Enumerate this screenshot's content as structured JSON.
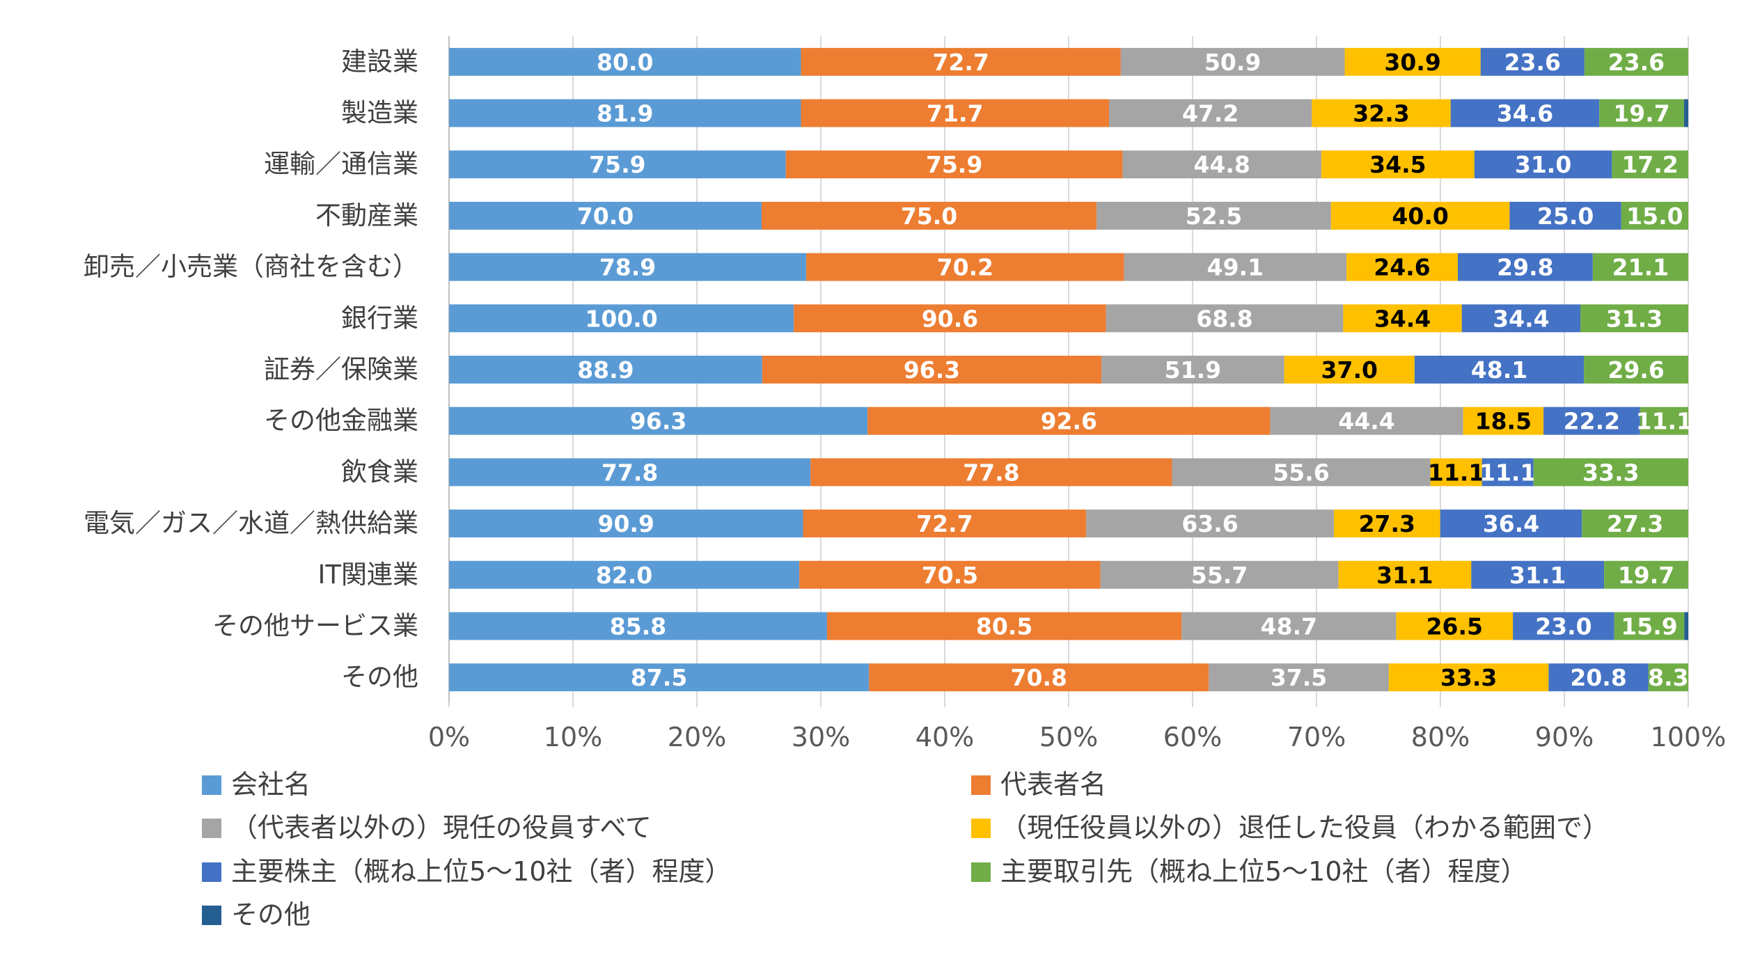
{
  "chart_data": {
    "type": "bar",
    "orientation": "horizontal",
    "stacked": true,
    "normalized": true,
    "categories": [
      "建設業",
      "製造業",
      "運輸／通信業",
      "不動産業",
      "卸売／小売業（商社を含む）",
      "銀行業",
      "証券／保険業",
      "その他金融業",
      "飲食業",
      "電気／ガス／水道／熱供給業",
      "IT関連業",
      "その他サービス業",
      "その他"
    ],
    "series": [
      {
        "name": "会社名",
        "color": "#5B9BD5",
        "label_color": "#FFFFFF",
        "values": [
          80.0,
          81.9,
          75.9,
          70.0,
          78.9,
          100.0,
          88.9,
          96.3,
          77.8,
          90.9,
          82.0,
          85.8,
          87.5
        ],
        "labels": [
          "80.0",
          "81.9",
          "75.9",
          "70.0",
          "78.9",
          "100.0",
          "88.9",
          "96.3",
          "77.8",
          "90.9",
          "82.0",
          "85.8",
          "87.5"
        ]
      },
      {
        "name": "代表者名",
        "color": "#ED7D31",
        "label_color": "#FFFFFF",
        "values": [
          72.7,
          71.7,
          75.9,
          75.0,
          70.2,
          90.6,
          96.3,
          92.6,
          77.8,
          72.7,
          70.5,
          80.5,
          70.8
        ],
        "labels": [
          "72.7",
          "71.7",
          "75.9",
          "75.0",
          "70.2",
          "90.6",
          "96.3",
          "92.6",
          "77.8",
          "72.7",
          "70.5",
          "80.5",
          "70.8"
        ]
      },
      {
        "name": "（代表者以外の）現任の役員すべて",
        "color": "#A5A5A5",
        "label_color": "#FFFFFF",
        "values": [
          50.9,
          47.2,
          44.8,
          52.5,
          49.1,
          68.8,
          51.9,
          44.4,
          55.6,
          63.6,
          55.7,
          48.7,
          37.5
        ],
        "labels": [
          "50.9",
          "47.2",
          "44.8",
          "52.5",
          "49.1",
          "68.8",
          "51.9",
          "44.4",
          "55.6",
          "63.6",
          "55.7",
          "48.7",
          "37.5"
        ]
      },
      {
        "name": "（現任役員以外の）退任した役員（わかる範囲で）",
        "color": "#FFC000",
        "label_color": "#000000",
        "values": [
          30.9,
          32.3,
          34.5,
          40.0,
          24.6,
          34.4,
          37.0,
          18.5,
          11.1,
          27.3,
          31.1,
          26.5,
          33.3
        ],
        "labels": [
          "30.9",
          "32.3",
          "34.5",
          "40.0",
          "24.6",
          "34.4",
          "37.0",
          "18.5",
          "11.1",
          "27.3",
          "31.1",
          "26.5",
          "33.3"
        ]
      },
      {
        "name": "主要株主（概ね上位5～10社（者）程度）",
        "color": "#4472C4",
        "label_color": "#FFFFFF",
        "values": [
          23.6,
          34.6,
          31.0,
          25.0,
          29.8,
          34.4,
          48.1,
          22.2,
          11.1,
          36.4,
          31.1,
          23.0,
          20.8
        ],
        "labels": [
          "23.6",
          "34.6",
          "31.0",
          "25.0",
          "29.8",
          "34.4",
          "48.1",
          "22.2",
          "11.1",
          "36.4",
          "31.1",
          "23.0",
          "20.8"
        ]
      },
      {
        "name": "主要取引先（概ね上位5～10社（者）程度）",
        "color": "#70AD47",
        "label_color": "#FFFFFF",
        "values": [
          23.6,
          19.7,
          17.2,
          15.0,
          21.1,
          31.3,
          29.6,
          11.1,
          33.3,
          27.3,
          19.7,
          15.9,
          8.3
        ],
        "labels": [
          "23.6",
          "19.7",
          "17.2",
          "15.0",
          "21.1",
          "31.3",
          "29.6",
          "11.1",
          "33.3",
          "27.3",
          "19.7",
          "15.9",
          "8.3"
        ]
      },
      {
        "name": "その他",
        "color": "#255E91",
        "label_color": "#FFFFFF",
        "values": [
          0,
          1.0,
          0,
          0,
          0,
          0,
          0,
          0,
          0,
          0,
          0,
          0.9,
          0
        ],
        "labels": [
          "",
          "",
          "",
          "",
          "",
          "",
          "",
          "",
          "",
          "",
          "",
          "",
          ""
        ]
      }
    ],
    "x_ticks": [
      "0%",
      "10%",
      "20%",
      "30%",
      "40%",
      "50%",
      "60%",
      "70%",
      "80%",
      "90%",
      "100%"
    ],
    "xlim": [
      0,
      100
    ],
    "grid": true,
    "legend_position": "bottom"
  }
}
